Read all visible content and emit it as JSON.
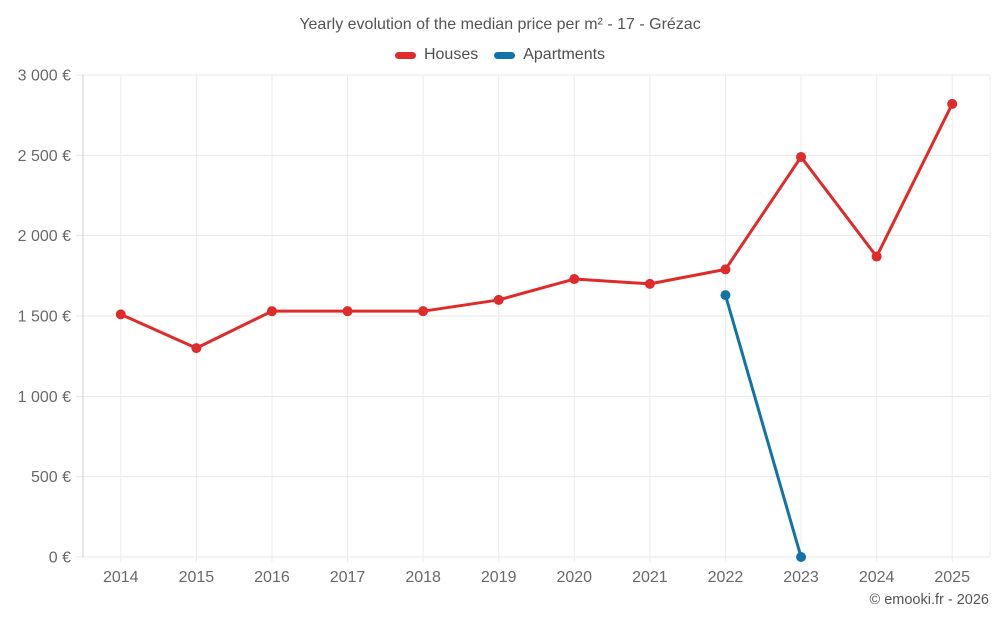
{
  "footer": {
    "credit": "© emooki.fr - 2026"
  },
  "chart_data": {
    "type": "line",
    "title": "Yearly evolution of the median price per m² - 17 - Grézac",
    "categories": [
      "2014",
      "2015",
      "2016",
      "2017",
      "2018",
      "2019",
      "2020",
      "2021",
      "2022",
      "2023",
      "2024",
      "2025"
    ],
    "series": [
      {
        "name": "Houses",
        "color": "#e02b2b",
        "values": [
          1510,
          1300,
          1530,
          1530,
          1530,
          1600,
          1730,
          1700,
          1790,
          2490,
          1870,
          2820
        ]
      },
      {
        "name": "Apartments",
        "color": "#1272aa",
        "values": [
          null,
          null,
          null,
          null,
          null,
          null,
          null,
          null,
          1630,
          0,
          null,
          null
        ]
      }
    ],
    "ylim": [
      0,
      3000
    ],
    "yticks": {
      "values": [
        0,
        500,
        1000,
        1500,
        2000,
        2500,
        3000
      ],
      "labels": [
        "0 €",
        "500 €",
        "1 000 €",
        "1 500 €",
        "2 000 €",
        "2 500 €",
        "3 000 €"
      ]
    },
    "grid": "on",
    "legend_position": "top"
  }
}
